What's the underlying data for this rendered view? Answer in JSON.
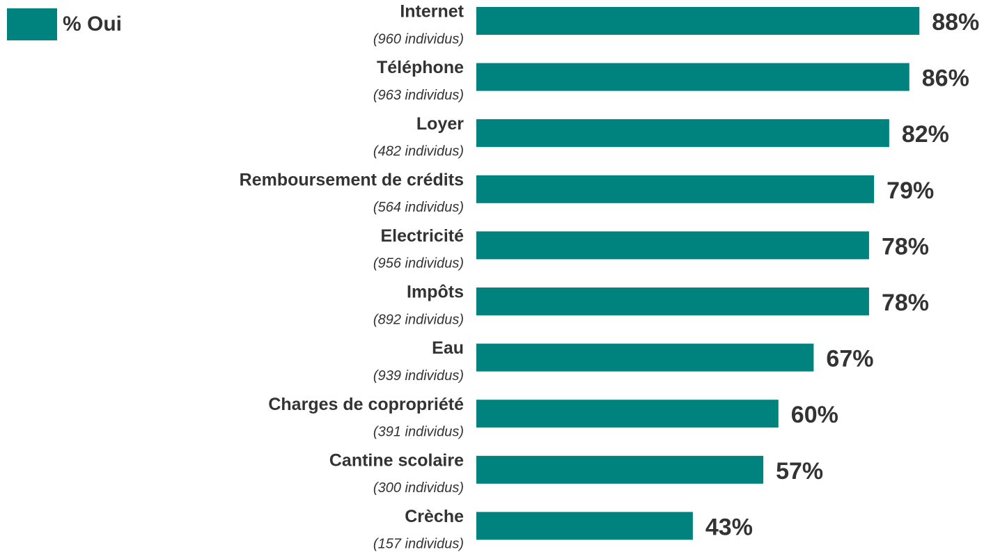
{
  "chart_data": {
    "type": "bar",
    "orientation": "horizontal",
    "legend": "% Oui",
    "color": "#00827f",
    "categories": [
      "Internet",
      "Téléphone",
      "Loyer",
      "Remboursement de crédits",
      "Electricité",
      "Impôts",
      "Eau",
      "Charges de copropriété",
      "Cantine scolaire",
      "Crèche"
    ],
    "subcategories": [
      "(960 individus)",
      "(963 individus)",
      "(482 individus)",
      "(564 individus)",
      "(956 individus)",
      "(892 individus)",
      "(939 individus)",
      "(391 individus)",
      "(300 individus)",
      "(157 individus)"
    ],
    "values": [
      88,
      86,
      82,
      79,
      78,
      78,
      67,
      60,
      57,
      43
    ],
    "value_labels": [
      "88%",
      "86%",
      "82%",
      "79%",
      "78%",
      "78%",
      "67%",
      "60%",
      "57%",
      "43%"
    ],
    "xlim": [
      0,
      100
    ]
  }
}
